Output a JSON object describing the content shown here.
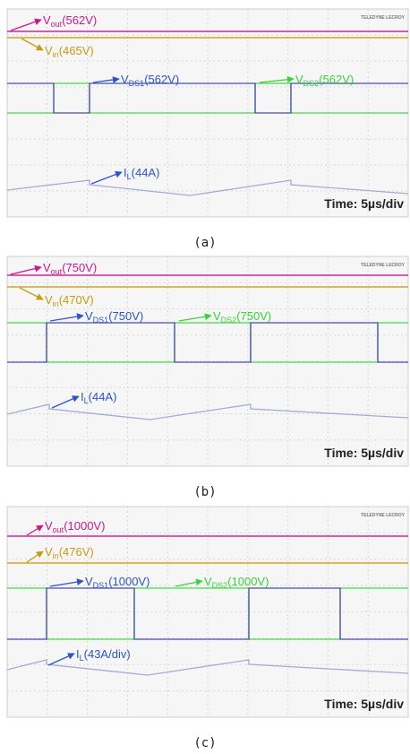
{
  "panels": [
    {
      "logo": "TELEDYNE LECROY",
      "vout": {
        "symbol": "V",
        "subscript": "out",
        "reading": "(562V)"
      },
      "vin": {
        "symbol": "V",
        "subscript": "in",
        "reading": "(465V)"
      },
      "vds1": {
        "symbol": "V",
        "subscript": "DS1",
        "reading": "(562V)"
      },
      "vds2": {
        "symbol": "V",
        "subscript": "DS2",
        "reading": "(562V)"
      },
      "il": {
        "symbol": "I",
        "subscript": "L",
        "reading": "(44A)"
      },
      "time": "Time: 5µs/div",
      "caption": "(a)"
    },
    {
      "logo": "TELEDYNE LECROY",
      "vout": {
        "symbol": "V",
        "subscript": "out",
        "reading": "(750V)"
      },
      "vin": {
        "symbol": "V",
        "subscript": "in",
        "reading": "(470V)"
      },
      "vds1": {
        "symbol": "V",
        "subscript": "DS1",
        "reading": "(750V)"
      },
      "vds2": {
        "symbol": "V",
        "subscript": "DS2",
        "reading": "(750V)"
      },
      "il": {
        "symbol": "I",
        "subscript": "L",
        "reading": "(44A)"
      },
      "time": "Time: 5µs/div",
      "caption": "(b)"
    },
    {
      "logo": "TELEDYNE LECROY",
      "vout": {
        "symbol": "V",
        "subscript": "out",
        "reading": "(1000V)"
      },
      "vin": {
        "symbol": "V",
        "subscript": "in",
        "reading": "(476V)"
      },
      "vds1": {
        "symbol": "V",
        "subscript": "DS1",
        "reading": "(1000V)"
      },
      "vds2": {
        "symbol": "V",
        "subscript": "DS2",
        "reading": "(1000V)"
      },
      "il": {
        "symbol": "I",
        "subscript": "L",
        "reading": "(43A/div)"
      },
      "time": "Time: 5µs/div",
      "caption": "(c)"
    }
  ]
}
